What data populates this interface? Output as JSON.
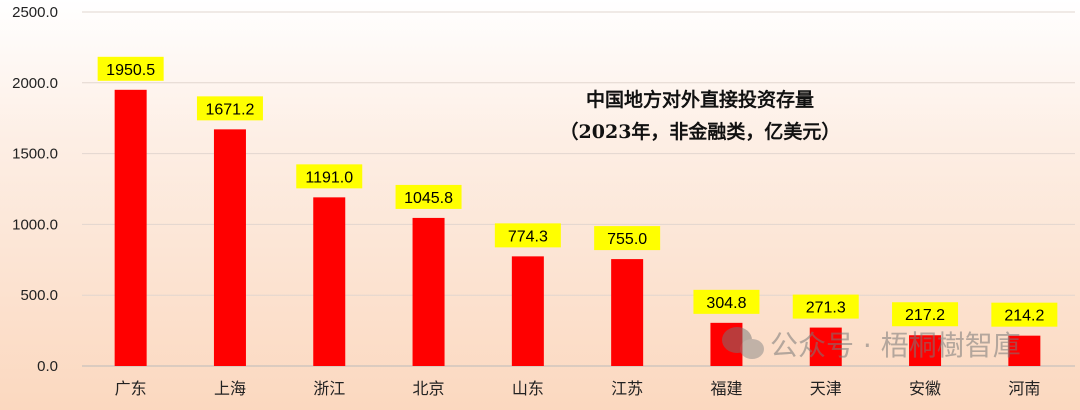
{
  "chart_data": {
    "type": "bar",
    "title": "中国地方对外直接投资存量",
    "subtitle": "（2023年，非金融类，亿美元）",
    "categories": [
      "广东",
      "上海",
      "浙江",
      "北京",
      "山东",
      "江苏",
      "福建",
      "天津",
      "安徽",
      "河南"
    ],
    "values": [
      1950.5,
      1671.2,
      1191.0,
      1045.8,
      774.3,
      755.0,
      304.8,
      271.3,
      217.2,
      214.2
    ],
    "ylim": [
      0,
      2500
    ],
    "yticks": [
      "0.0",
      "500.0",
      "1000.0",
      "1500.0",
      "2000.0",
      "2500.0"
    ],
    "grid": true,
    "bar_color": "#ff0000",
    "label_bg": "#ffff00"
  },
  "watermark": {
    "text": "公众号 · 梧桐樹智庫",
    "icon": "wechat-icon"
  }
}
